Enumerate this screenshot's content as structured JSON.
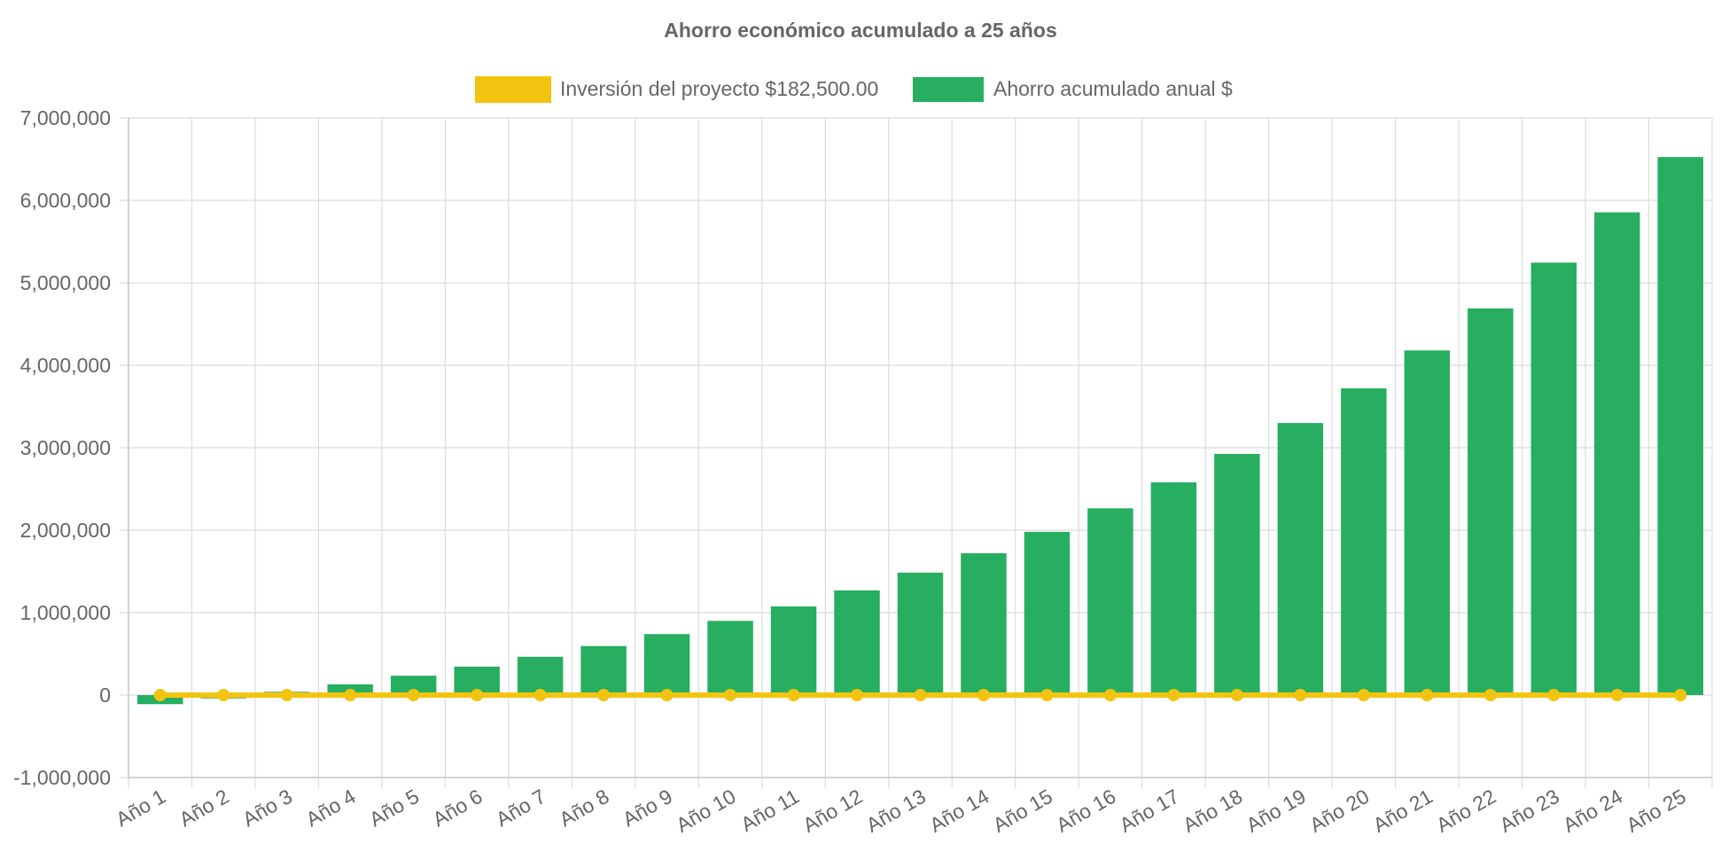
{
  "chart_data": {
    "type": "bar",
    "title": "Ahorro económico acumulado a 25 años",
    "xlabel": "",
    "ylabel": "",
    "ylim": [
      -1000000,
      7000000
    ],
    "ytick_step": 1000000,
    "ytick_labels": [
      "-1,000,000",
      "0",
      "1,000,000",
      "2,000,000",
      "3,000,000",
      "4,000,000",
      "5,000,000",
      "6,000,000",
      "7,000,000"
    ],
    "grid": true,
    "legend_position": "top-center",
    "categories": [
      "Año 1",
      "Año 2",
      "Año 3",
      "Año 4",
      "Año 5",
      "Año 6",
      "Año 7",
      "Año 8",
      "Año 9",
      "Año 10",
      "Año 11",
      "Año 12",
      "Año 13",
      "Año 14",
      "Año 15",
      "Año 16",
      "Año 17",
      "Año 18",
      "Año 19",
      "Año 20",
      "Año 21",
      "Año 22",
      "Año 23",
      "Año 24",
      "Año 25"
    ],
    "series": [
      {
        "name": "Inversión del proyecto $182,500.00",
        "type": "line",
        "color": "#f2c40f",
        "values": [
          0,
          0,
          0,
          0,
          0,
          0,
          0,
          0,
          0,
          0,
          0,
          0,
          0,
          0,
          0,
          0,
          0,
          0,
          0,
          0,
          0,
          0,
          0,
          0,
          0
        ]
      },
      {
        "name": "Ahorro acumulado anual $",
        "type": "bar",
        "color": "#27ae60",
        "values": [
          -110000,
          -40000,
          40000,
          130000,
          235000,
          345000,
          465000,
          595000,
          740000,
          900000,
          1075000,
          1270000,
          1485000,
          1720000,
          1980000,
          2265000,
          2580000,
          2925000,
          3300000,
          3720000,
          4180000,
          4690000,
          5245000,
          5855000,
          6525000
        ]
      }
    ]
  }
}
